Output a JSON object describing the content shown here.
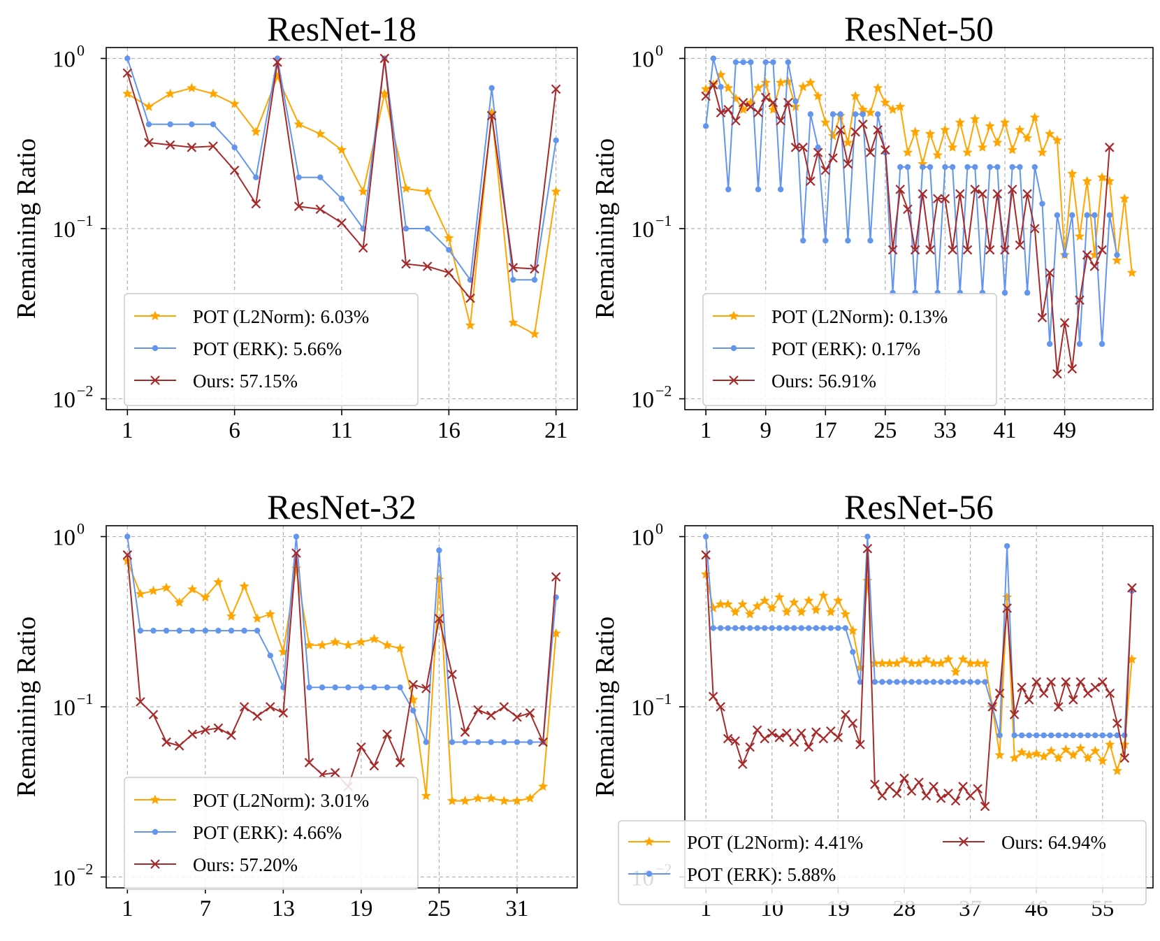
{
  "colors": {
    "l2norm": "#FFA500",
    "erk": "#6495ED",
    "ours": "#A52A2A"
  },
  "chart_data": [
    {
      "type": "line",
      "title": "ResNet-18",
      "ylabel": "Remaining Ratio",
      "yscale": "log",
      "ylim": [
        0.01,
        1
      ],
      "yticks": [
        {
          "value": 1,
          "label": "10",
          "exp": "0"
        },
        {
          "value": 0.1,
          "label": "10",
          "exp": "−1"
        },
        {
          "value": 0.01,
          "label": "10",
          "exp": "−2"
        }
      ],
      "xticks": [
        1,
        6,
        11,
        16,
        21
      ],
      "legend": {
        "position": "lower-left",
        "columns": 1
      },
      "series": [
        {
          "name": "POT (L2Norm): 6.03%",
          "key": "l2norm",
          "marker": "star",
          "values": [
            0.62,
            0.52,
            0.62,
            0.67,
            0.62,
            0.54,
            0.37,
            0.78,
            0.41,
            0.36,
            0.29,
            0.165,
            0.62,
            0.172,
            0.165,
            0.088,
            0.027,
            0.48,
            0.028,
            0.024,
            0.165
          ]
        },
        {
          "name": "POT (ERK): 5.66%",
          "key": "erk",
          "marker": "dot",
          "values": [
            1.0,
            0.41,
            0.41,
            0.41,
            0.41,
            0.3,
            0.2,
            1.0,
            0.2,
            0.2,
            0.15,
            0.1,
            1.0,
            0.1,
            0.1,
            0.075,
            0.05,
            0.67,
            0.05,
            0.05,
            0.33
          ]
        },
        {
          "name": "Ours: 57.15%",
          "key": "ours",
          "marker": "x",
          "values": [
            0.82,
            0.32,
            0.31,
            0.3,
            0.305,
            0.22,
            0.14,
            0.95,
            0.135,
            0.13,
            0.108,
            0.077,
            1.0,
            0.062,
            0.06,
            0.055,
            0.039,
            0.46,
            0.059,
            0.058,
            0.66
          ]
        }
      ]
    },
    {
      "type": "line",
      "title": "ResNet-50",
      "ylabel": "Remaining Ratio",
      "yscale": "log",
      "ylim": [
        0.01,
        1
      ],
      "yticks": [
        {
          "value": 1,
          "label": "10",
          "exp": "0"
        },
        {
          "value": 0.1,
          "label": "10",
          "exp": "−1"
        },
        {
          "value": 0.01,
          "label": "10",
          "exp": "−2"
        }
      ],
      "xticks": [
        1,
        9,
        17,
        25,
        33,
        41,
        49
      ],
      "legend": {
        "position": "lower-left",
        "columns": 1
      },
      "series": [
        {
          "name": "POT (L2Norm): 0.13%",
          "key": "l2norm",
          "marker": "star",
          "values": [
            0.66,
            0.7,
            0.8,
            0.67,
            0.58,
            0.5,
            0.55,
            0.67,
            0.72,
            0.5,
            0.72,
            0.73,
            0.52,
            0.68,
            0.72,
            0.6,
            0.42,
            0.35,
            0.46,
            0.32,
            0.6,
            0.5,
            0.48,
            0.67,
            0.55,
            0.5,
            0.52,
            0.28,
            0.37,
            0.24,
            0.36,
            0.27,
            0.38,
            0.3,
            0.42,
            0.28,
            0.44,
            0.3,
            0.4,
            0.32,
            0.42,
            0.29,
            0.38,
            0.34,
            0.45,
            0.28,
            0.36,
            0.33,
            0.07,
            0.21,
            0.09,
            0.19,
            0.07,
            0.2,
            0.19,
            0.065,
            0.15,
            0.055
          ]
        },
        {
          "name": "POT (ERK): 0.17%",
          "key": "erk",
          "marker": "dot",
          "values": [
            0.4,
            1.0,
            0.68,
            0.17,
            0.95,
            0.95,
            0.95,
            0.17,
            0.95,
            0.95,
            0.17,
            0.95,
            0.56,
            0.085,
            0.47,
            0.3,
            0.085,
            0.47,
            0.47,
            0.085,
            0.47,
            0.47,
            0.085,
            0.47,
            0.28,
            0.042,
            0.23,
            0.23,
            0.042,
            0.23,
            0.23,
            0.042,
            0.23,
            0.23,
            0.042,
            0.23,
            0.23,
            0.042,
            0.23,
            0.23,
            0.042,
            0.23,
            0.23,
            0.042,
            0.23,
            0.14,
            0.021,
            0.12,
            0.07,
            0.12,
            0.021,
            0.12,
            0.12,
            0.021,
            0.12,
            0.07
          ]
        },
        {
          "name": "Ours: 56.91%",
          "key": "ours",
          "marker": "x",
          "values": [
            0.6,
            0.7,
            0.48,
            0.5,
            0.43,
            0.55,
            0.52,
            0.48,
            0.59,
            0.55,
            0.43,
            0.55,
            0.3,
            0.3,
            0.19,
            0.28,
            0.22,
            0.26,
            0.38,
            0.24,
            0.37,
            0.41,
            0.28,
            0.38,
            0.29,
            0.075,
            0.17,
            0.13,
            0.075,
            0.16,
            0.075,
            0.15,
            0.15,
            0.075,
            0.16,
            0.075,
            0.17,
            0.16,
            0.075,
            0.16,
            0.075,
            0.17,
            0.08,
            0.16,
            0.1,
            0.03,
            0.055,
            0.014,
            0.028,
            0.015,
            0.038,
            0.07,
            0.06,
            0.075,
            0.3
          ]
        }
      ]
    },
    {
      "type": "line",
      "title": "ResNet-32",
      "ylabel": "Remaining Ratio",
      "yscale": "log",
      "ylim": [
        0.01,
        1
      ],
      "yticks": [
        {
          "value": 1,
          "label": "10",
          "exp": "0"
        },
        {
          "value": 0.1,
          "label": "10",
          "exp": "−1"
        },
        {
          "value": 0.01,
          "label": "10",
          "exp": "−2"
        }
      ],
      "xticks": [
        1,
        7,
        13,
        19,
        25,
        31
      ],
      "legend": {
        "position": "lower-left",
        "columns": 1
      },
      "series": [
        {
          "name": "POT (L2Norm): 3.01%",
          "key": "l2norm",
          "marker": "star",
          "values": [
            0.72,
            0.46,
            0.48,
            0.5,
            0.41,
            0.49,
            0.44,
            0.54,
            0.34,
            0.51,
            0.33,
            0.35,
            0.21,
            0.65,
            0.23,
            0.23,
            0.24,
            0.23,
            0.24,
            0.25,
            0.23,
            0.22,
            0.11,
            0.03,
            0.56,
            0.028,
            0.028,
            0.029,
            0.029,
            0.028,
            0.028,
            0.029,
            0.034,
            0.27
          ]
        },
        {
          "name": "POT (ERK): 4.66%",
          "key": "erk",
          "marker": "dot",
          "values": [
            1.0,
            0.28,
            0.28,
            0.28,
            0.28,
            0.28,
            0.28,
            0.28,
            0.28,
            0.28,
            0.28,
            0.2,
            0.13,
            1.0,
            0.13,
            0.13,
            0.13,
            0.13,
            0.13,
            0.13,
            0.13,
            0.13,
            0.095,
            0.062,
            0.83,
            0.062,
            0.062,
            0.062,
            0.062,
            0.062,
            0.062,
            0.062,
            0.062,
            0.44
          ]
        },
        {
          "name": "Ours: 57.20%",
          "key": "ours",
          "marker": "x",
          "values": [
            0.78,
            0.107,
            0.09,
            0.062,
            0.059,
            0.069,
            0.073,
            0.075,
            0.068,
            0.1,
            0.088,
            0.1,
            0.092,
            0.8,
            0.047,
            0.04,
            0.041,
            0.034,
            0.058,
            0.045,
            0.069,
            0.047,
            0.135,
            0.128,
            0.33,
            0.155,
            0.071,
            0.096,
            0.089,
            0.1,
            0.087,
            0.092,
            0.062,
            0.58
          ]
        }
      ]
    },
    {
      "type": "line",
      "title": "ResNet-56",
      "ylabel": "Remaining Ratio",
      "yscale": "log",
      "ylim": [
        0.01,
        1
      ],
      "yticks": [
        {
          "value": 1,
          "label": "10",
          "exp": "0"
        },
        {
          "value": 0.1,
          "label": "10",
          "exp": "−1"
        },
        {
          "value": 0.01,
          "label": "10",
          "exp": "−2"
        }
      ],
      "xticks": [
        1,
        10,
        19,
        28,
        37,
        46,
        55
      ],
      "legend": {
        "position": "lower-center",
        "columns": 2
      },
      "series": [
        {
          "name": "POT (L2Norm): 4.41%",
          "key": "l2norm",
          "marker": "star",
          "values": [
            0.6,
            0.38,
            0.4,
            0.4,
            0.36,
            0.4,
            0.35,
            0.39,
            0.42,
            0.38,
            0.44,
            0.36,
            0.41,
            0.36,
            0.42,
            0.37,
            0.45,
            0.36,
            0.42,
            0.35,
            0.28,
            0.17,
            0.55,
            0.18,
            0.18,
            0.18,
            0.18,
            0.19,
            0.18,
            0.18,
            0.19,
            0.18,
            0.18,
            0.19,
            0.16,
            0.19,
            0.18,
            0.18,
            0.18,
            0.1,
            0.052,
            0.44,
            0.05,
            0.054,
            0.052,
            0.053,
            0.051,
            0.055,
            0.05,
            0.056,
            0.052,
            0.057,
            0.05,
            0.055,
            0.048,
            0.06,
            0.042,
            0.06,
            0.19
          ]
        },
        {
          "name": "POT (ERK): 5.88%",
          "key": "erk",
          "marker": "dot",
          "values": [
            1.0,
            0.29,
            0.29,
            0.29,
            0.29,
            0.29,
            0.29,
            0.29,
            0.29,
            0.29,
            0.29,
            0.29,
            0.29,
            0.29,
            0.29,
            0.29,
            0.29,
            0.29,
            0.29,
            0.29,
            0.21,
            0.14,
            1.0,
            0.14,
            0.14,
            0.14,
            0.14,
            0.14,
            0.14,
            0.14,
            0.14,
            0.14,
            0.14,
            0.14,
            0.14,
            0.14,
            0.14,
            0.14,
            0.14,
            0.1,
            0.068,
            0.88,
            0.068,
            0.068,
            0.068,
            0.068,
            0.068,
            0.068,
            0.068,
            0.068,
            0.068,
            0.068,
            0.068,
            0.068,
            0.068,
            0.068,
            0.068,
            0.068,
            0.48
          ]
        },
        {
          "name": "Ours: 64.94%",
          "key": "ours",
          "marker": "x",
          "values": [
            0.78,
            0.115,
            0.1,
            0.065,
            0.063,
            0.046,
            0.058,
            0.073,
            0.065,
            0.07,
            0.066,
            0.07,
            0.062,
            0.07,
            0.058,
            0.071,
            0.065,
            0.072,
            0.066,
            0.09,
            0.08,
            0.06,
            0.85,
            0.035,
            0.03,
            0.034,
            0.031,
            0.038,
            0.032,
            0.036,
            0.03,
            0.034,
            0.029,
            0.031,
            0.028,
            0.034,
            0.03,
            0.033,
            0.026,
            0.1,
            0.12,
            0.38,
            0.09,
            0.13,
            0.11,
            0.14,
            0.12,
            0.14,
            0.1,
            0.14,
            0.11,
            0.14,
            0.12,
            0.13,
            0.14,
            0.12,
            0.08,
            0.05,
            0.5
          ]
        }
      ]
    }
  ]
}
